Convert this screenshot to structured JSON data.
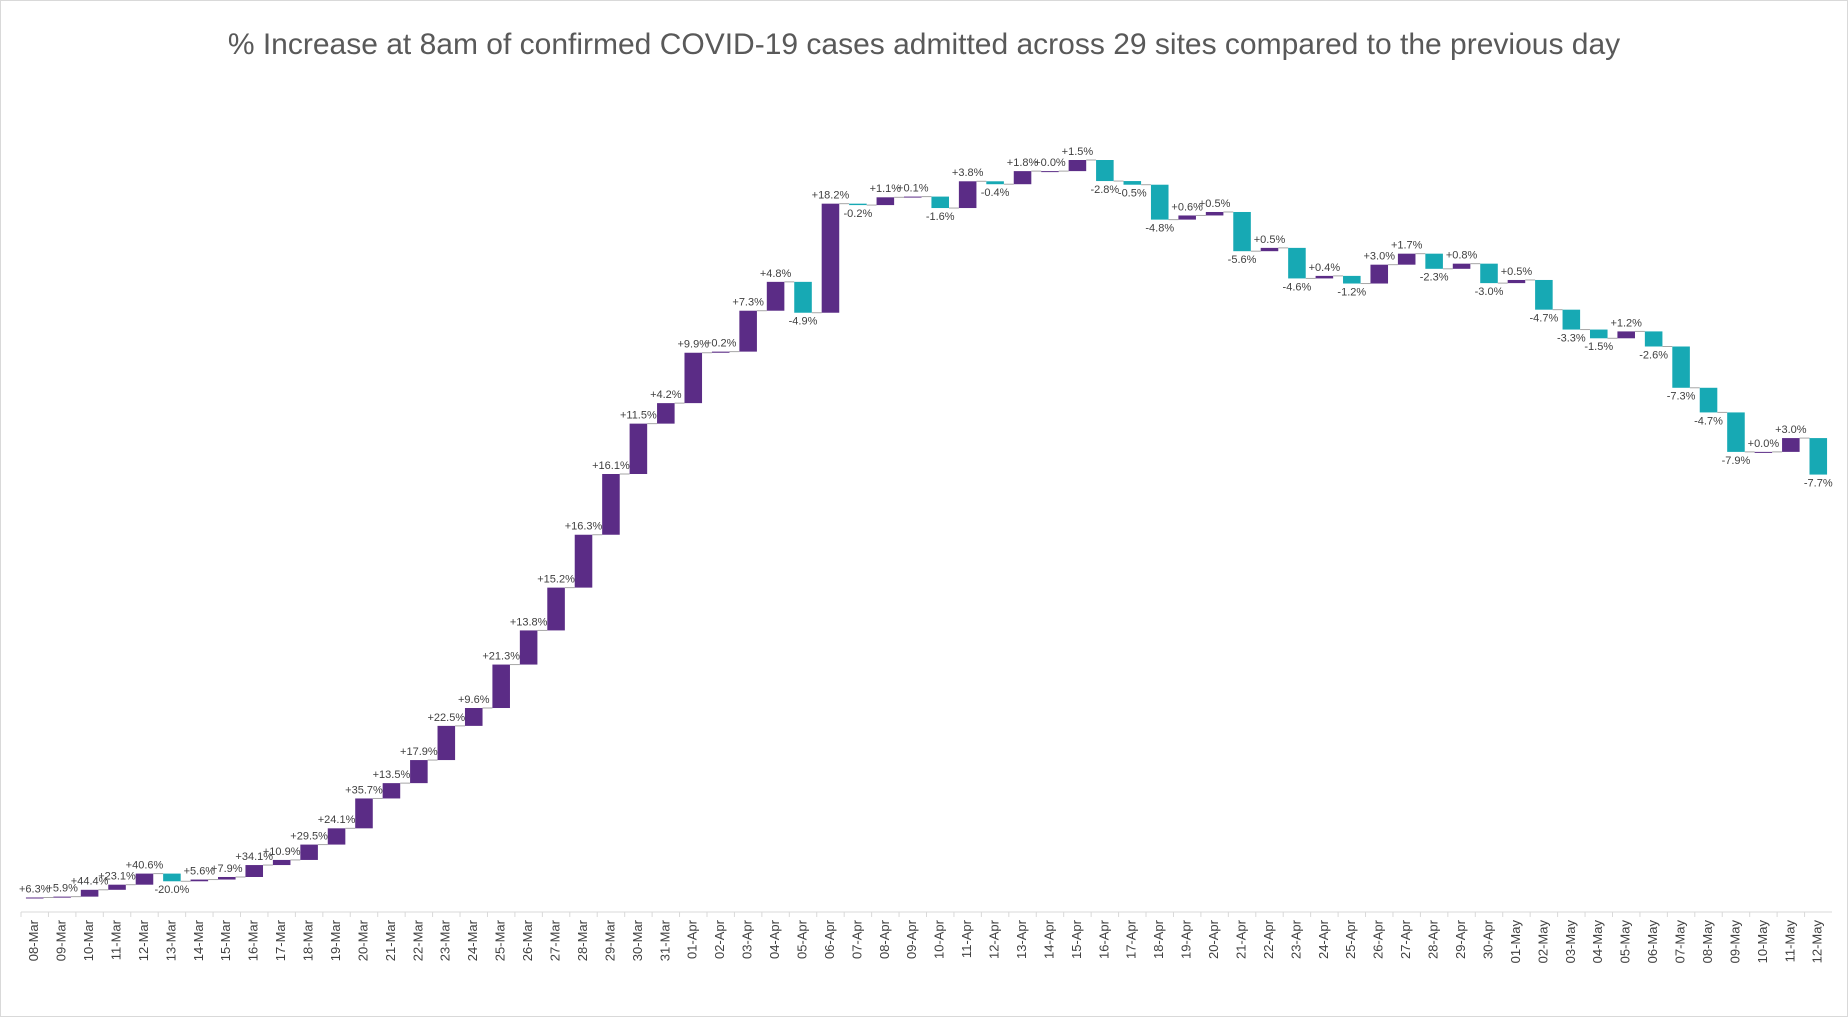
{
  "chart_data": {
    "type": "waterfall",
    "title": "% Increase at 8am of confirmed COVID-19 cases admitted across 29 sites compared to the previous day",
    "increase_color": "#5b2c86",
    "decrease_color": "#17a9b4",
    "categories": [
      "08-Mar",
      "09-Mar",
      "10-Mar",
      "11-Mar",
      "12-Mar",
      "13-Mar",
      "14-Mar",
      "15-Mar",
      "16-Mar",
      "17-Mar",
      "18-Mar",
      "19-Mar",
      "20-Mar",
      "21-Mar",
      "22-Mar",
      "23-Mar",
      "24-Mar",
      "25-Mar",
      "26-Mar",
      "27-Mar",
      "28-Mar",
      "29-Mar",
      "30-Mar",
      "31-Mar",
      "01-Apr",
      "02-Apr",
      "03-Apr",
      "04-Apr",
      "05-Apr",
      "06-Apr",
      "07-Apr",
      "08-Apr",
      "09-Apr",
      "10-Apr",
      "11-Apr",
      "12-Apr",
      "13-Apr",
      "14-Apr",
      "15-Apr",
      "16-Apr",
      "17-Apr",
      "18-Apr",
      "19-Apr",
      "20-Apr",
      "21-Apr",
      "22-Apr",
      "23-Apr",
      "24-Apr",
      "25-Apr",
      "26-Apr",
      "27-Apr",
      "28-Apr",
      "29-Apr",
      "30-Apr",
      "01-May",
      "02-May",
      "03-May",
      "04-May",
      "05-May",
      "06-May",
      "07-May",
      "08-May",
      "09-May",
      "10-May",
      "11-May",
      "12-May"
    ],
    "values": [
      6.3,
      5.9,
      44.4,
      23.1,
      40.6,
      -20.0,
      5.6,
      7.9,
      34.1,
      10.9,
      29.5,
      24.1,
      35.7,
      13.5,
      17.9,
      22.5,
      9.6,
      21.3,
      13.8,
      15.2,
      16.3,
      16.1,
      11.5,
      4.2,
      9.9,
      0.2,
      7.3,
      4.8,
      -4.9,
      18.2,
      -0.2,
      1.1,
      0.1,
      -1.6,
      3.8,
      -0.4,
      1.8,
      0.0,
      1.5,
      -2.8,
      -0.5,
      -4.8,
      0.6,
      0.5,
      -5.6,
      0.5,
      -4.6,
      0.4,
      -1.2,
      3.0,
      1.7,
      -2.3,
      0.8,
      -3.0,
      0.5,
      -4.7,
      -3.3,
      -1.5,
      1.2,
      -2.6,
      -7.3,
      -4.7,
      -7.9,
      0.0,
      3.0,
      -7.7
    ],
    "value_labels": [
      "+6.3%",
      "+5.9%",
      "+44.4%",
      "+23.1%",
      "+40.6%",
      "-20.0%",
      "+5.6%",
      "+7.9%",
      "+34.1%",
      "+10.9%",
      "+29.5%",
      "+24.1%",
      "+35.7%",
      "+13.5%",
      "+17.9%",
      "+22.5%",
      "+9.6%",
      "+21.3%",
      "+13.8%",
      "+15.2%",
      "+16.3%",
      "+16.1%",
      "+11.5%",
      "+4.2%",
      "+9.9%",
      "+0.2%",
      "+7.3%",
      "+4.8%",
      "-4.9%",
      "+18.2%",
      "-0.2%",
      "+1.1%",
      "+0.1%",
      "-1.6%",
      "+3.8%",
      "-0.4%",
      "+1.8%",
      "+0.0%",
      "+1.5%",
      "-2.8%",
      "-0.5%",
      "-4.8%",
      "+0.6%",
      "+0.5%",
      "-5.6%",
      "+0.5%",
      "-4.6%",
      "+0.4%",
      "-1.2%",
      "+3.0%",
      "+1.7%",
      "-2.3%",
      "+0.8%",
      "-3.0%",
      "+0.5%",
      "-4.7%",
      "-3.3%",
      "-1.5%",
      "+1.2%",
      "-2.6%",
      "-7.3%",
      "-4.7%",
      "-7.9%",
      "+0.0%",
      "+3.0%",
      "-7.7%"
    ]
  }
}
